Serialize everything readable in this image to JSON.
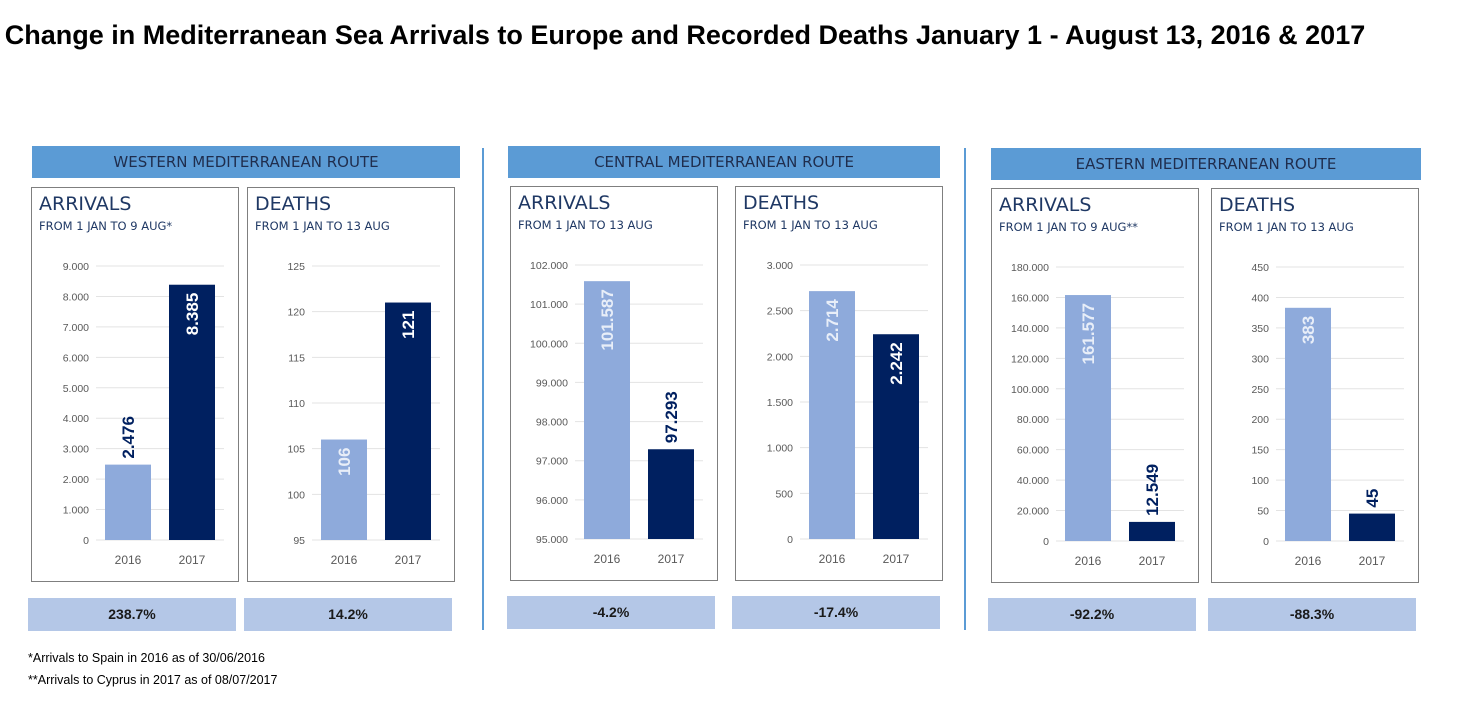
{
  "title": "Change in Mediterranean Sea Arrivals to Europe and Recorded Deaths January 1 - August 13, 2016 & 2017",
  "colors": {
    "route_header": "#5b9bd5",
    "bar_2016": "#8eaadb",
    "bar_2017": "#002060",
    "percent_box": "#b4c7e7"
  },
  "routes": [
    {
      "name": "WESTERN MEDITERRANEAN ROUTE"
    },
    {
      "name": "CENTRAL MEDITERRANEAN ROUTE"
    },
    {
      "name": "EASTERN MEDITERRANEAN ROUTE"
    }
  ],
  "chart_data": [
    {
      "type": "bar",
      "route": "WESTERN MEDITERRANEAN ROUTE",
      "title": "ARRIVALS",
      "subtitle": "FROM 1 JAN TO 9 AUG*",
      "categories": [
        "2016",
        "2017"
      ],
      "values": [
        2476,
        8385
      ],
      "data_labels": [
        "2.476",
        "8.385"
      ],
      "ylim": [
        0,
        9000
      ],
      "ticks": [
        "0",
        "1.000",
        "2.000",
        "3.000",
        "4.000",
        "5.000",
        "6.000",
        "7.000",
        "8.000",
        "9.000"
      ],
      "change": "238.7%",
      "grid": true
    },
    {
      "type": "bar",
      "route": "WESTERN MEDITERRANEAN ROUTE",
      "title": "DEATHS",
      "subtitle": "FROM 1 JAN TO 13 AUG",
      "categories": [
        "2016",
        "2017"
      ],
      "values": [
        106,
        121
      ],
      "data_labels": [
        "106",
        "121"
      ],
      "ylim": [
        95,
        125
      ],
      "ticks": [
        "95",
        "100",
        "105",
        "110",
        "115",
        "120",
        "125"
      ],
      "change": "14.2%",
      "grid": true
    },
    {
      "type": "bar",
      "route": "CENTRAL MEDITERRANEAN ROUTE",
      "title": "ARRIVALS",
      "subtitle": "FROM 1 JAN TO 13 AUG",
      "categories": [
        "2016",
        "2017"
      ],
      "values": [
        101587,
        97293
      ],
      "data_labels": [
        "101.587",
        "97.293"
      ],
      "ylim": [
        95000,
        102000
      ],
      "ticks": [
        "95.000",
        "96.000",
        "97.000",
        "98.000",
        "99.000",
        "100.000",
        "101.000",
        "102.000"
      ],
      "change": "-4.2%",
      "grid": true
    },
    {
      "type": "bar",
      "route": "CENTRAL MEDITERRANEAN ROUTE",
      "title": "DEATHS",
      "subtitle": "FROM 1 JAN TO 13 AUG",
      "categories": [
        "2016",
        "2017"
      ],
      "values": [
        2714,
        2242
      ],
      "data_labels": [
        "2.714",
        "2.242"
      ],
      "ylim": [
        0,
        3000
      ],
      "ticks": [
        "0",
        "500",
        "1.000",
        "1.500",
        "2.000",
        "2.500",
        "3.000"
      ],
      "change": "-17.4%",
      "grid": true
    },
    {
      "type": "bar",
      "route": "EASTERN MEDITERRANEAN ROUTE",
      "title": "ARRIVALS",
      "subtitle": "FROM 1 JAN TO 9 AUG**",
      "categories": [
        "2016",
        "2017"
      ],
      "values": [
        161577,
        12549
      ],
      "data_labels": [
        "161.577",
        "12.549"
      ],
      "ylim": [
        0,
        180000
      ],
      "ticks": [
        "0",
        "20.000",
        "40.000",
        "60.000",
        "80.000",
        "100.000",
        "120.000",
        "140.000",
        "160.000",
        "180.000"
      ],
      "change": "-92.2%",
      "grid": true
    },
    {
      "type": "bar",
      "route": "EASTERN MEDITERRANEAN ROUTE",
      "title": "DEATHS",
      "subtitle": "FROM 1 JAN TO 13 AUG",
      "categories": [
        "2016",
        "2017"
      ],
      "values": [
        383,
        45
      ],
      "data_labels": [
        "383",
        "45"
      ],
      "ylim": [
        0,
        450
      ],
      "ticks": [
        "0",
        "50",
        "100",
        "150",
        "200",
        "250",
        "300",
        "350",
        "400",
        "450"
      ],
      "change": "-88.3%",
      "grid": true
    }
  ],
  "notes": [
    "*Arrivals to Spain in 2016 as of 30/06/2016",
    "**Arrivals to Cyprus in 2017 as of 08/07/2017"
  ]
}
